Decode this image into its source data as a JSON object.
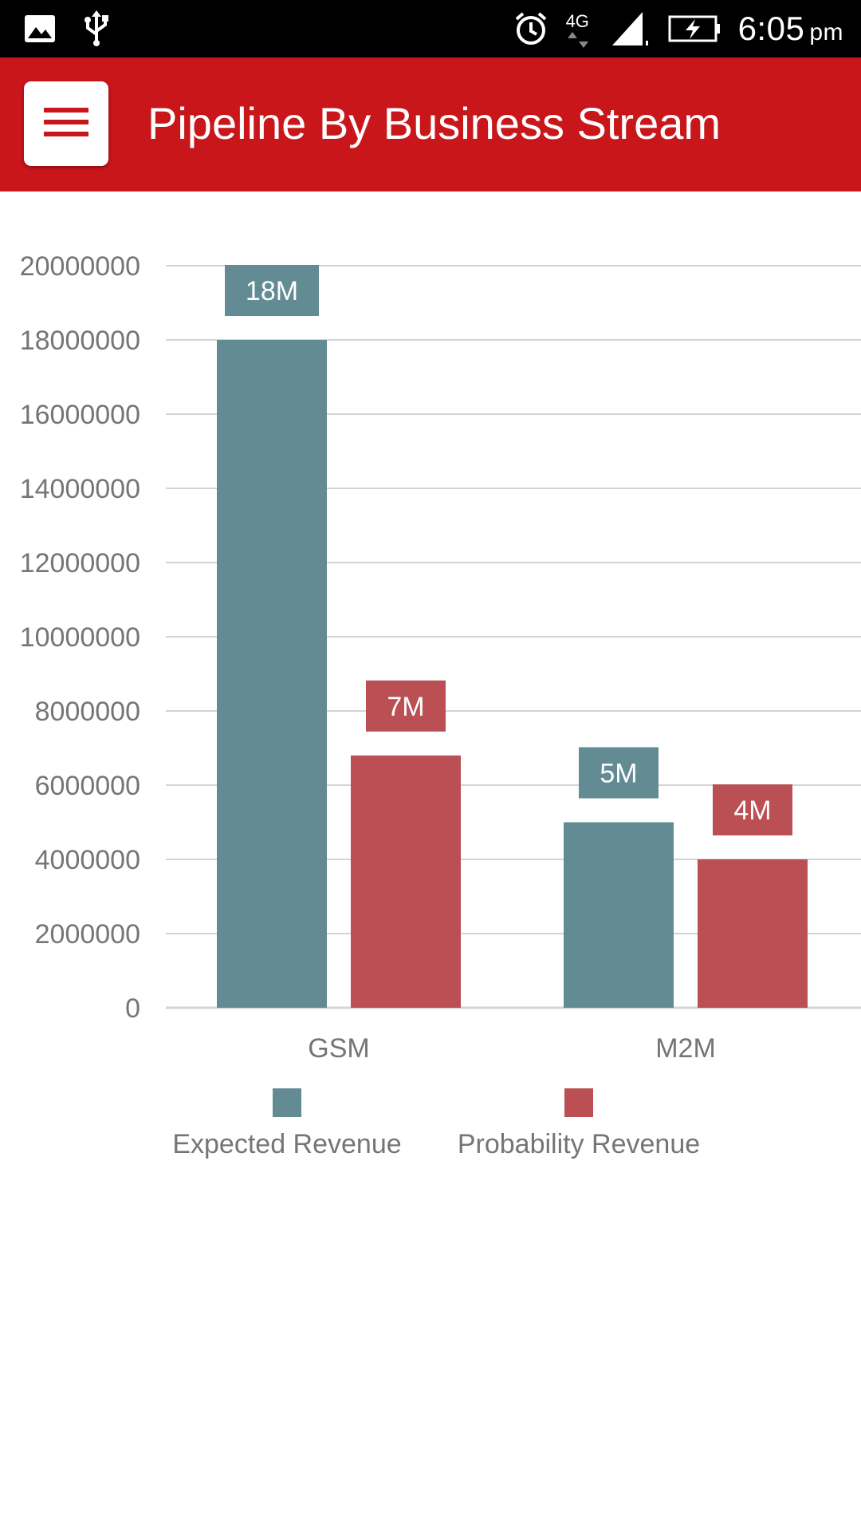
{
  "status_bar": {
    "time": "6:05",
    "ampm": "pm",
    "network_label": "4G",
    "icons": [
      "image-icon",
      "usb-icon",
      "alarm-icon",
      "network-4g-icon",
      "signal-icon",
      "battery-charging-icon"
    ]
  },
  "header": {
    "title": "Pipeline By Business Stream",
    "menu_icon": "hamburger-menu-icon"
  },
  "colors": {
    "header_bg": "#c8161b",
    "expected": "#628b93",
    "probability": "#ba4f54",
    "grid": "#d4d4d4",
    "axis_text": "#757575"
  },
  "chart_data": {
    "type": "bar",
    "title": "",
    "xlabel": "",
    "ylabel": "",
    "categories": [
      "GSM",
      "M2M"
    ],
    "series": [
      {
        "name": "Expected Revenue",
        "color": "#628b93",
        "values": [
          18000000,
          5000000
        ],
        "labels": [
          "18M",
          "5M"
        ]
      },
      {
        "name": "Probability Revenue",
        "color": "#ba4f54",
        "values": [
          6800000,
          4000000
        ],
        "labels": [
          "7M",
          "4M"
        ]
      }
    ],
    "ylim": [
      0,
      20000000
    ],
    "yticks": [
      "0",
      "2000000",
      "4000000",
      "6000000",
      "8000000",
      "10000000",
      "12000000",
      "14000000",
      "16000000",
      "18000000",
      "20000000"
    ],
    "grid": true,
    "legend_position": "bottom"
  }
}
